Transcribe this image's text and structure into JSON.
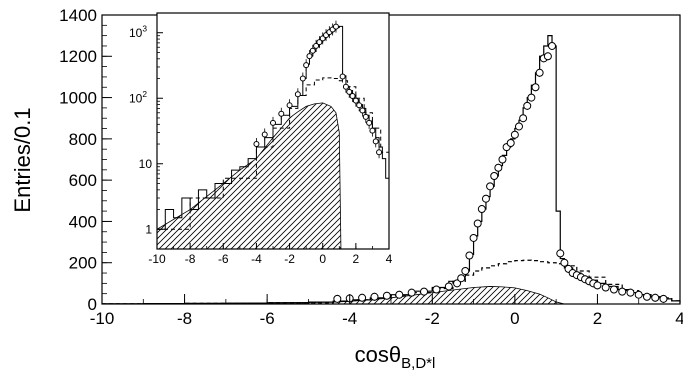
{
  "chart_data": [
    {
      "type": "line",
      "role": "main",
      "xlabel_base": "cosθ",
      "xlabel_sub": "B,D*l",
      "ylabel": "Entries/0.1",
      "xlim": [
        -10,
        4
      ],
      "ylim": [
        0,
        1400
      ],
      "xticks": [
        -10,
        -8,
        -6,
        -4,
        -2,
        0,
        2,
        4
      ],
      "yticks": [
        0,
        200,
        400,
        600,
        800,
        1000,
        1200,
        1400
      ],
      "xticklabels": [
        "-10",
        "-8",
        "-6",
        "-4",
        "-2",
        "0",
        "2",
        "4"
      ],
      "yticklabels": [
        "0",
        "200",
        "400",
        "600",
        "800",
        "1000",
        "1200",
        "1400"
      ],
      "grid": false,
      "series": [
        {
          "style": "solid-histogram",
          "x": [
            -10,
            -9,
            -8,
            -7,
            -6,
            -5,
            -4.4,
            -4,
            -3.5,
            -3,
            -2.5,
            -2,
            -1.6,
            -1.3,
            -1.2,
            -1.1,
            -1.0,
            -0.9,
            -0.8,
            -0.7,
            -0.6,
            -0.5,
            -0.4,
            -0.3,
            -0.2,
            -0.1,
            0.0,
            0.1,
            0.2,
            0.3,
            0.4,
            0.5,
            0.6,
            0.7,
            0.8,
            0.9,
            1.0,
            1.1,
            1.2,
            1.4,
            1.6,
            1.8,
            2.0,
            2.2,
            2.5,
            2.8,
            3.0,
            3.3,
            3.6,
            3.8,
            4.0
          ],
          "y": [
            1,
            2,
            3,
            4,
            6,
            9,
            14,
            20,
            30,
            45,
            62,
            80,
            110,
            130,
            160,
            240,
            330,
            400,
            460,
            520,
            570,
            620,
            670,
            720,
            760,
            800,
            850,
            890,
            950,
            1000,
            1060,
            1120,
            1200,
            1250,
            1300,
            1250,
            450,
            220,
            175,
            150,
            130,
            115,
            100,
            85,
            70,
            55,
            45,
            35,
            25,
            15,
            5
          ]
        },
        {
          "style": "dashed-histogram",
          "x": [
            -10,
            -8,
            -6,
            -4.4,
            -4,
            -3.5,
            -3,
            -2.5,
            -2,
            -1.5,
            -1.2,
            -1.0,
            -0.8,
            -0.6,
            -0.4,
            -0.2,
            0.0,
            0.2,
            0.4,
            0.6,
            0.8,
            1.0,
            1.2,
            1.5,
            1.8,
            2.2,
            2.6,
            3.0,
            3.4,
            3.8,
            4.0
          ],
          "y": [
            1,
            3,
            6,
            14,
            20,
            28,
            40,
            55,
            75,
            110,
            140,
            160,
            175,
            185,
            195,
            205,
            210,
            212,
            210,
            205,
            200,
            195,
            185,
            160,
            130,
            95,
            65,
            45,
            30,
            15,
            5
          ]
        },
        {
          "style": "hatched-area",
          "x": [
            -10,
            -8,
            -6,
            -4.4,
            -4,
            -3.5,
            -3,
            -2.5,
            -2,
            -1.5,
            -1.0,
            -0.6,
            -0.3,
            0.0,
            0.3,
            0.6,
            0.8,
            1.0,
            1.2
          ],
          "y": [
            1,
            2,
            5,
            9,
            13,
            20,
            30,
            42,
            55,
            68,
            80,
            85,
            83,
            78,
            65,
            48,
            30,
            10,
            0
          ]
        },
        {
          "style": "open-circle-markers",
          "x": [
            -4.3,
            -4.0,
            -3.7,
            -3.4,
            -3.1,
            -2.8,
            -2.5,
            -2.2,
            -1.9,
            -1.6,
            -1.4,
            -1.3,
            -1.2,
            -1.1,
            -1.0,
            -0.9,
            -0.8,
            -0.7,
            -0.6,
            -0.5,
            -0.4,
            -0.3,
            -0.2,
            -0.1,
            0.0,
            0.1,
            0.2,
            0.3,
            0.4,
            0.5,
            0.6,
            0.7,
            0.8,
            0.9,
            1.1,
            1.2,
            1.3,
            1.4,
            1.5,
            1.6,
            1.7,
            1.8,
            1.9,
            2.0,
            2.2,
            2.4,
            2.6,
            2.8,
            3.0,
            3.2,
            3.4,
            3.6
          ],
          "y": [
            25,
            27,
            30,
            35,
            40,
            45,
            55,
            60,
            70,
            85,
            100,
            125,
            160,
            235,
            320,
            390,
            460,
            510,
            570,
            620,
            660,
            700,
            760,
            780,
            820,
            860,
            900,
            960,
            1000,
            1050,
            1120,
            1190,
            1200,
            1250,
            245,
            200,
            170,
            150,
            140,
            130,
            120,
            110,
            100,
            90,
            80,
            70,
            60,
            55,
            45,
            35,
            30,
            25
          ]
        }
      ]
    },
    {
      "type": "line",
      "role": "inset",
      "xlim": [
        -10,
        4
      ],
      "ylim": [
        0.5,
        2000
      ],
      "yscale": "log",
      "xticks": [
        -10,
        -8,
        -6,
        -4,
        -2,
        0,
        2,
        4
      ],
      "xticklabels": [
        "-10",
        "-8",
        "-6",
        "-4",
        "-2",
        "0",
        "2",
        "4"
      ],
      "yticks": [
        1,
        10,
        100,
        1000
      ],
      "yticklabels": [
        {
          "base": "1",
          "exp": ""
        },
        {
          "base": "10",
          "exp": ""
        },
        {
          "base": "10",
          "exp": "2"
        },
        {
          "base": "10",
          "exp": "3"
        }
      ],
      "grid": false,
      "series": [
        {
          "style": "solid-histogram",
          "x": [
            -10,
            -9.5,
            -9,
            -8.5,
            -8,
            -7.5,
            -7,
            -6.5,
            -6,
            -5.5,
            -5,
            -4.5,
            -4,
            -3.5,
            -3,
            -2.5,
            -2,
            -1.5,
            -1.2,
            -1.0,
            -0.8,
            -0.6,
            -0.4,
            -0.2,
            0.0,
            0.2,
            0.4,
            0.6,
            0.8,
            1.0,
            1.2,
            1.4,
            1.6,
            1.8,
            2.0,
            2.2,
            2.4,
            2.6,
            2.8,
            3.0,
            3.2,
            3.4,
            3.6,
            3.8,
            4.0
          ],
          "y": [
            1,
            2,
            1.5,
            3,
            2,
            4,
            3,
            5,
            5,
            8,
            9,
            12,
            18,
            25,
            40,
            55,
            75,
            110,
            200,
            330,
            450,
            520,
            620,
            720,
            800,
            900,
            1000,
            1100,
            1200,
            1250,
            220,
            150,
            130,
            110,
            95,
            80,
            70,
            55,
            45,
            35,
            25,
            18,
            12,
            6,
            3
          ]
        },
        {
          "style": "dashed-histogram",
          "x": [
            -10,
            -8,
            -6,
            -4,
            -3,
            -2,
            -1.5,
            -1.0,
            -0.5,
            0.0,
            0.5,
            1.0,
            1.5,
            2.0,
            2.5,
            3.0,
            3.5,
            4.0
          ],
          "y": [
            1,
            3,
            6,
            18,
            35,
            70,
            110,
            160,
            190,
            205,
            200,
            185,
            150,
            100,
            60,
            35,
            15,
            3
          ]
        },
        {
          "style": "hatched-area",
          "x": [
            -10,
            -8,
            -6,
            -5,
            -4,
            -3,
            -2.5,
            -2,
            -1.5,
            -1.0,
            -0.5,
            0.0,
            0.5,
            0.8,
            1.0,
            1.1
          ],
          "y": [
            1,
            2,
            5,
            8,
            12,
            25,
            35,
            50,
            62,
            75,
            82,
            85,
            75,
            60,
            30,
            0.5
          ]
        },
        {
          "style": "open-circle-markers",
          "x": [
            -4.0,
            -3.5,
            -3.0,
            -2.5,
            -2.0,
            -1.5,
            -1.2,
            -1.0,
            -0.8,
            -0.6,
            -0.4,
            -0.2,
            0.0,
            0.2,
            0.4,
            0.6,
            0.8,
            1.2,
            1.4,
            1.6,
            1.8,
            2.0,
            2.2,
            2.4,
            2.6,
            2.8,
            3.0,
            3.2,
            3.4
          ],
          "y": [
            20,
            28,
            42,
            58,
            78,
            115,
            200,
            320,
            440,
            530,
            630,
            720,
            820,
            920,
            1020,
            1120,
            1240,
            215,
            150,
            125,
            108,
            92,
            78,
            65,
            52,
            42,
            32,
            22,
            15
          ]
        }
      ]
    }
  ]
}
